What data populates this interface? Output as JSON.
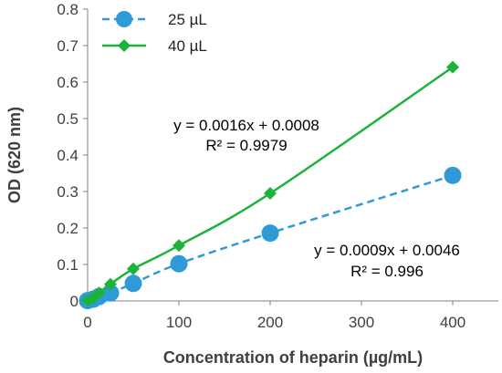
{
  "chart_data": {
    "type": "line",
    "xlabel": "Concentration of heparin (µg/mL)",
    "ylabel": "OD (620 nm)",
    "xlim": [
      0,
      450
    ],
    "ylim": [
      0,
      0.8
    ],
    "x_ticks": [
      0,
      100,
      200,
      300,
      400
    ],
    "x_tick_labels": [
      "0",
      "100",
      "200",
      "300",
      "400"
    ],
    "y_ticks": [
      0,
      0.1,
      0.2,
      0.3,
      0.4,
      0.5,
      0.6,
      0.7,
      0.8
    ],
    "y_tick_labels": [
      "0",
      "0.1",
      "0.2",
      "0.3",
      "0.4",
      "0.5",
      "0.6",
      "0.7",
      "0.8"
    ],
    "grid": false,
    "legend_position": "top-left",
    "series": [
      {
        "name": "25 µL",
        "color": "#2E9BD8",
        "marker": "circle",
        "line_style": "dashed",
        "x": [
          0,
          6.25,
          12.5,
          25,
          50,
          100,
          200,
          400
        ],
        "y": [
          0.001,
          0.005,
          0.012,
          0.022,
          0.048,
          0.102,
          0.186,
          0.344
        ]
      },
      {
        "name": "40 µL",
        "color": "#1DB33A",
        "marker": "diamond",
        "line_style": "solid",
        "x": [
          0,
          6.25,
          12.5,
          25,
          50,
          100,
          200,
          400
        ],
        "y": [
          0.002,
          0.008,
          0.022,
          0.046,
          0.088,
          0.152,
          0.295,
          0.641
        ]
      }
    ],
    "annotations": [
      {
        "id": "eq40",
        "lines": [
          "y = 0.0016x + 0.0008",
          "R² = 0.9979"
        ]
      },
      {
        "id": "eq25",
        "lines": [
          "y = 0.0009x + 0.0046",
          "R² = 0.996"
        ]
      }
    ]
  }
}
